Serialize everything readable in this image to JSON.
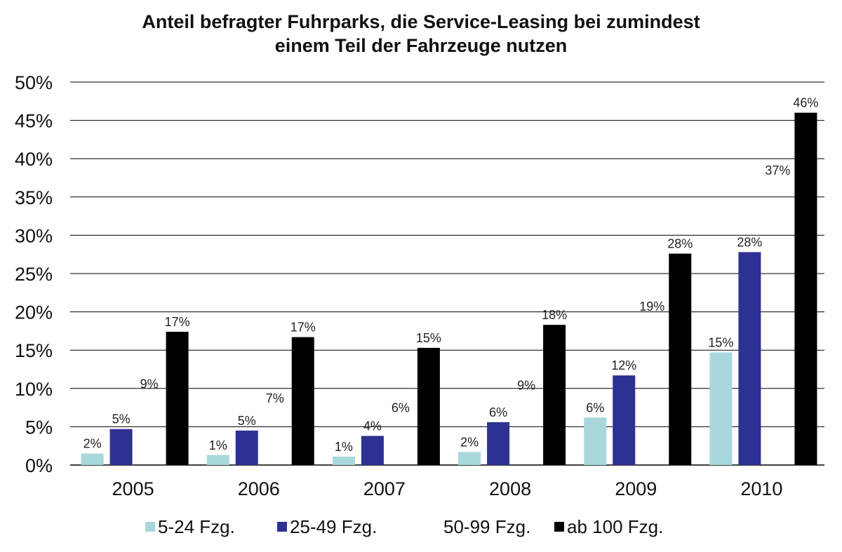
{
  "chart_data": {
    "type": "bar",
    "title": "Anteil befragter Fuhrparks, die Service-Leasing bei zumindest einem Teil der Fahrzeuge nutzen",
    "title_lines": [
      "Anteil befragter Fuhrparks, die Service-Leasing bei zumindest",
      "einem Teil der Fahrzeuge nutzen"
    ],
    "xlabel": "",
    "ylabel": "",
    "categories": [
      "2005",
      "2006",
      "2007",
      "2008",
      "2009",
      "2010"
    ],
    "ylim": [
      0,
      50
    ],
    "yticks": [
      0,
      5,
      10,
      15,
      20,
      25,
      30,
      35,
      40,
      45,
      50
    ],
    "ytick_labels": [
      "0%",
      "5%",
      "10%",
      "15%",
      "20%",
      "25%",
      "30%",
      "35%",
      "40%",
      "45%",
      "50%"
    ],
    "grid": true,
    "legend_position": "bottom",
    "series": [
      {
        "name": "5-24 Fzg.",
        "color": "#a8d8dc",
        "values": [
          1.5,
          1.3,
          1.1,
          1.7,
          6.2,
          14.7
        ],
        "labels": [
          "2%",
          "1%",
          "1%",
          "2%",
          "6%",
          "15%"
        ]
      },
      {
        "name": "25-49 Fzg.",
        "color": "#2e3191",
        "values": [
          4.7,
          4.5,
          3.8,
          5.6,
          11.7,
          27.8
        ],
        "labels": [
          "5%",
          "5%",
          "4%",
          "6%",
          "12%",
          "28%"
        ]
      },
      {
        "name": "50-99 Fzg.",
        "color": "#ffffff",
        "values": [
          9.3,
          7.4,
          6.2,
          9.1,
          19.4,
          37.2
        ],
        "labels": [
          "9%",
          "7%",
          "6%",
          "9%",
          "19%",
          "37%"
        ]
      },
      {
        "name": "ab 100 Fzg.",
        "color": "#000000",
        "values": [
          17.4,
          16.7,
          15.3,
          18.3,
          27.6,
          46.0
        ],
        "labels": [
          "17%",
          "17%",
          "15%",
          "18%",
          "28%",
          "46%"
        ]
      }
    ]
  }
}
